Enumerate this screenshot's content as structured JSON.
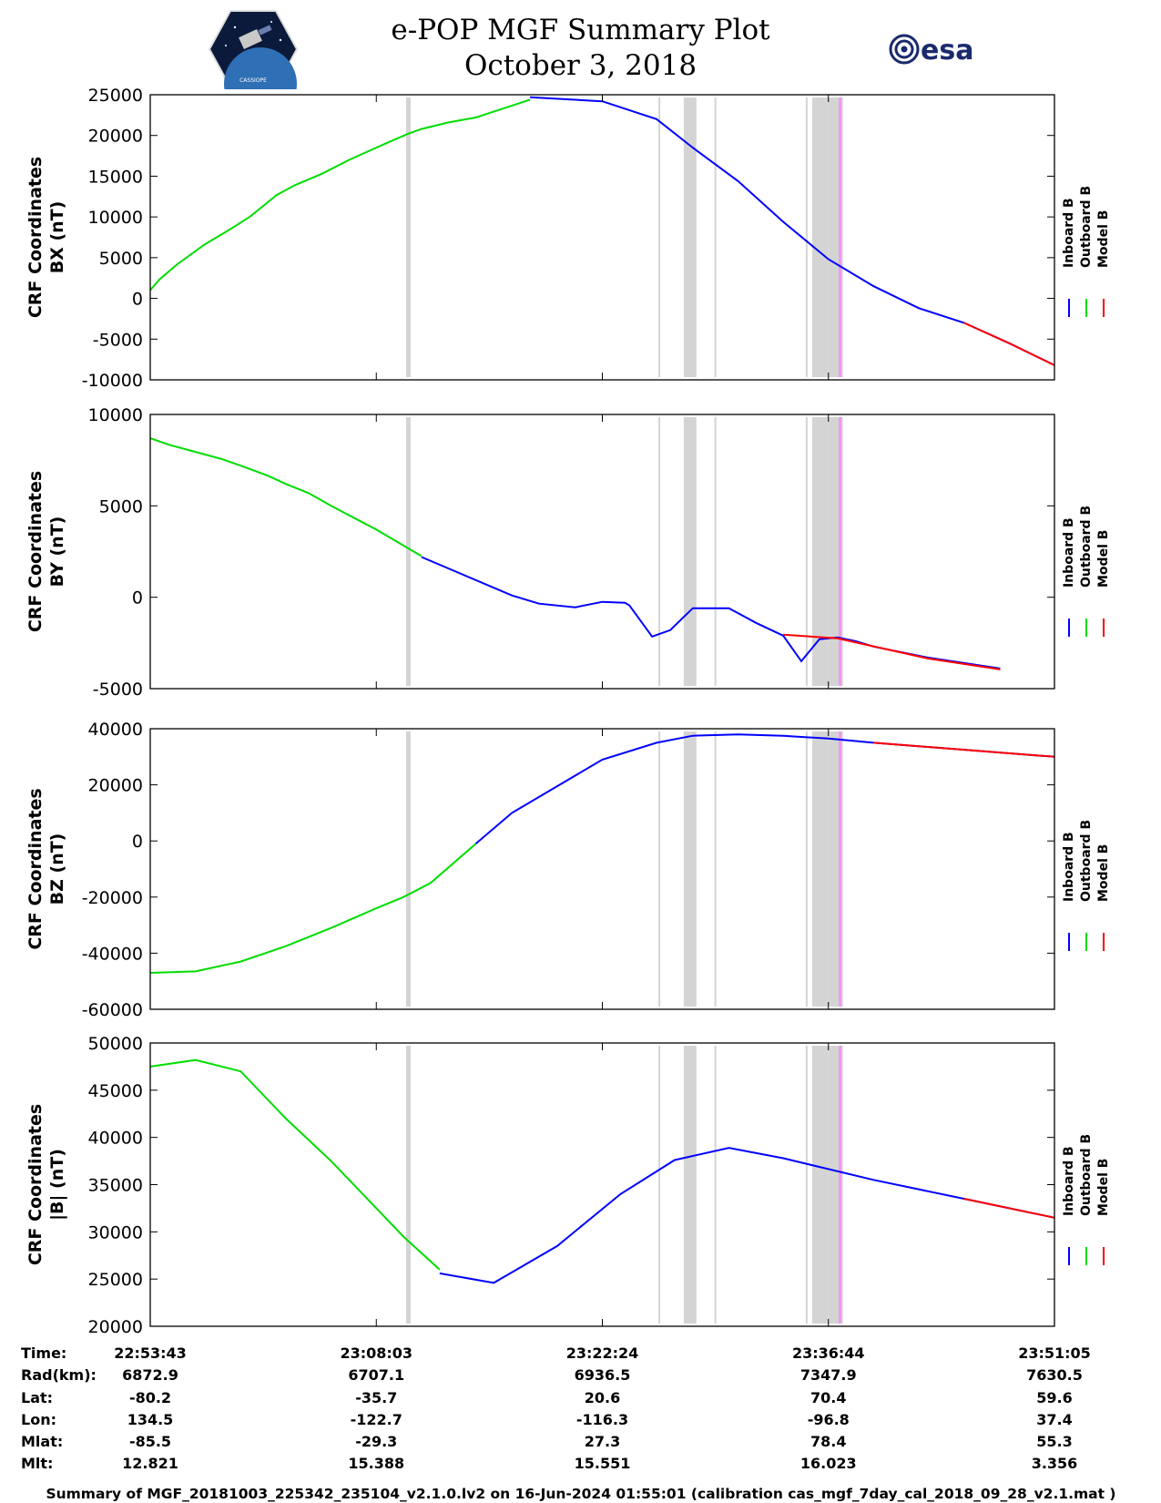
{
  "header": {
    "title_line1": "e-POP MGF Summary Plot",
    "title_line2": "October 3, 2018",
    "logo_left_text": "CASSIOPE",
    "logo_right_text": "esa"
  },
  "colors": {
    "inboard": "#0000ff",
    "outboard": "#00dd00",
    "model": "#ff0000",
    "gap": "#d4d4d4",
    "marker": "#ee99ee"
  },
  "chart_data": [
    {
      "type": "line",
      "ylabel": [
        "CRF Coordinates",
        "BX (nT)"
      ],
      "ylim": [
        -10000,
        25000
      ],
      "yticks": [
        25000,
        20000,
        15000,
        10000,
        5000,
        0,
        -5000,
        -10000
      ],
      "xlim": [
        0,
        1000
      ],
      "legend": [
        "Inboard B",
        "Outboard B",
        "Model B"
      ],
      "series": [
        {
          "name": "Outboard B",
          "x": [
            0,
            10,
            30,
            60,
            90,
            110,
            140,
            160,
            190,
            220,
            260,
            285,
            300,
            330,
            360,
            420
          ],
          "y": [
            1000,
            2300,
            4200,
            6600,
            8600,
            10000,
            12700,
            13900,
            15300,
            17000,
            19000,
            20200,
            20800,
            21600,
            22200,
            24400
          ]
        },
        {
          "name": "Inboard B",
          "x": [
            420,
            500,
            560,
            600,
            650,
            700,
            750,
            800,
            850,
            900,
            950,
            1000
          ],
          "y": [
            24700,
            24200,
            22000,
            18500,
            14400,
            9400,
            4800,
            1500,
            -1200,
            -3000,
            -5500,
            -8200
          ]
        },
        {
          "name": "Model B",
          "x": [
            900,
            950,
            1000
          ],
          "y": [
            -3000,
            -5500,
            -8200
          ]
        }
      ]
    },
    {
      "type": "line",
      "ylabel": [
        "CRF Coordinates",
        "BY (nT)"
      ],
      "ylim": [
        -5000,
        10000
      ],
      "yticks": [
        10000,
        5000,
        0,
        -5000
      ],
      "xlim": [
        0,
        1000
      ],
      "legend": [
        "Inboard B",
        "Outboard B",
        "Model B"
      ],
      "series": [
        {
          "name": "Outboard B",
          "x": [
            0,
            20,
            50,
            80,
            100,
            130,
            150,
            175,
            200,
            250,
            300
          ],
          "y": [
            8700,
            8350,
            7950,
            7550,
            7200,
            6650,
            6200,
            5700,
            5000,
            3700,
            2250
          ]
        },
        {
          "name": "Inboard B",
          "x": [
            300,
            400,
            430,
            470,
            500,
            525,
            530,
            555,
            575,
            600,
            640,
            655,
            670,
            700,
            720,
            740,
            760,
            780,
            800,
            860,
            900,
            940
          ],
          "y": [
            2200,
            100,
            -350,
            -550,
            -250,
            -300,
            -450,
            -2150,
            -1800,
            -600,
            -600,
            -1000,
            -1400,
            -2100,
            -3500,
            -2300,
            -2200,
            -2400,
            -2700,
            -3300,
            -3600,
            -3900
          ]
        },
        {
          "name": "Model B",
          "x": [
            700,
            760,
            860,
            940
          ],
          "y": [
            -2050,
            -2250,
            -3350,
            -3950
          ]
        }
      ]
    },
    {
      "type": "line",
      "ylabel": [
        "CRF Coordinates",
        "BZ (nT)"
      ],
      "ylim": [
        -60000,
        40000
      ],
      "yticks": [
        40000,
        20000,
        0,
        -20000,
        -40000,
        -60000
      ],
      "xlim": [
        0,
        1000
      ],
      "legend": [
        "Inboard B",
        "Outboard B",
        "Model B"
      ],
      "series": [
        {
          "name": "Outboard B",
          "x": [
            0,
            50,
            100,
            150,
            200,
            250,
            280,
            310,
            360
          ],
          "y": [
            -47000,
            -46500,
            -43000,
            -37500,
            -31000,
            -24000,
            -20000,
            -15000,
            -1000
          ]
        },
        {
          "name": "Inboard B",
          "x": [
            360,
            400,
            500,
            560,
            600,
            650,
            700,
            750,
            800,
            1000
          ],
          "y": [
            -1000,
            10000,
            29000,
            35000,
            37500,
            38000,
            37500,
            36500,
            35000,
            30000
          ]
        },
        {
          "name": "Model B",
          "x": [
            800,
            1000
          ],
          "y": [
            35000,
            30000
          ]
        }
      ]
    },
    {
      "type": "line",
      "ylabel": [
        "CRF Coordinates",
        "|B| (nT)"
      ],
      "ylim": [
        20000,
        50000
      ],
      "yticks": [
        50000,
        45000,
        40000,
        35000,
        30000,
        25000,
        20000
      ],
      "xlim": [
        0,
        1000
      ],
      "legend": [
        "Inboard B",
        "Outboard B",
        "Model B"
      ],
      "series": [
        {
          "name": "Outboard B",
          "x": [
            0,
            50,
            100,
            150,
            200,
            250,
            280,
            320
          ],
          "y": [
            47500,
            48200,
            47000,
            42000,
            37500,
            32500,
            29500,
            26000
          ]
        },
        {
          "name": "Inboard B",
          "x": [
            320,
            380,
            450,
            520,
            580,
            640,
            700,
            800,
            900,
            1000
          ],
          "y": [
            25600,
            24600,
            28500,
            34000,
            37600,
            38900,
            37800,
            35500,
            33500,
            31500
          ]
        },
        {
          "name": "Model B",
          "x": [
            900,
            1000
          ],
          "y": [
            33500,
            31500
          ]
        }
      ]
    }
  ],
  "gaps": [
    {
      "x0": 283,
      "x1": 288
    },
    {
      "x0": 562,
      "x1": 564
    },
    {
      "x0": 590,
      "x1": 604
    },
    {
      "x0": 624,
      "x1": 626
    },
    {
      "x0": 725,
      "x1": 727
    },
    {
      "x0": 732,
      "x1": 750
    },
    {
      "x0": 750,
      "x1": 766
    }
  ],
  "marker": {
    "x": 763
  },
  "table": {
    "row_labels": [
      "Time:",
      "Rad(km):",
      "Lat:",
      "Lon:",
      "Mlat:",
      "Mlt:"
    ],
    "columns": [
      {
        "x": 0,
        "values": [
          "22:53:43",
          "6872.9",
          "-80.2",
          "134.5",
          "-85.5",
          "12.821"
        ]
      },
      {
        "x": 250,
        "values": [
          "23:08:03",
          "6707.1",
          "-35.7",
          "-122.7",
          "-29.3",
          "15.388"
        ]
      },
      {
        "x": 500,
        "values": [
          "23:22:24",
          "6936.5",
          "20.6",
          "-116.3",
          "27.3",
          "15.551"
        ]
      },
      {
        "x": 750,
        "values": [
          "23:36:44",
          "7347.9",
          "70.4",
          "-96.8",
          "78.4",
          "16.023"
        ]
      },
      {
        "x": 1000,
        "values": [
          "23:51:05",
          "7630.5",
          "59.6",
          "37.4",
          "55.3",
          "3.356"
        ]
      }
    ]
  },
  "footer": "Summary of MGF_20181003_225342_235104_v2.1.0.lv2 on 16-Jun-2024 01:55:01 (calibration cas_mgf_7day_cal_2018_09_28_v2.1.mat )"
}
